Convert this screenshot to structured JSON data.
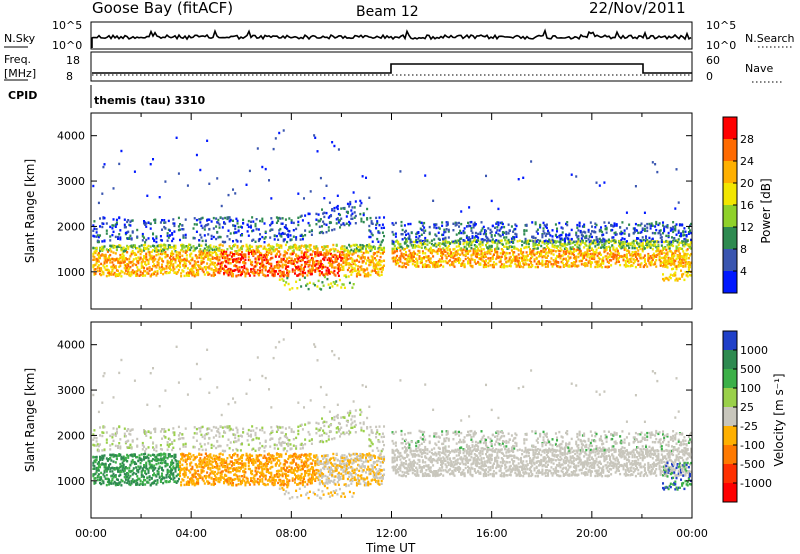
{
  "header": {
    "site": "Goose Bay (fitACF)",
    "beam": "Beam 12",
    "date": "22/Nov/2011"
  },
  "status_panels": {
    "nsky_label": "N.Sky",
    "nsky_ticks": [
      "10^5",
      "10^0"
    ],
    "nsearch_label": "N.Search",
    "nsearch_ticks": [
      "10^5",
      "10^0"
    ],
    "freq_label_line1": "Freq.",
    "freq_label_line2": "[MHz]",
    "freq_ticks": [
      "18",
      "8"
    ],
    "nave_label": "Nave",
    "nave_ticks": [
      "60",
      "0"
    ],
    "cpid_label": "CPID",
    "cpid_text": "themis (tau) 3310"
  },
  "chart_data": [
    {
      "type": "heatmap",
      "ylabel": "Slant Range [km]",
      "y_ticks": [
        "1000",
        "2000",
        "3000",
        "4000"
      ],
      "ylim": [
        180,
        4500
      ],
      "xlim": [
        0,
        24
      ],
      "colorbar_label": "Power [dB]",
      "colorbar_ticks": [
        "28",
        "24",
        "20",
        "16",
        "12",
        "8",
        "4"
      ],
      "colorbar_colors": [
        "#ff0000",
        "#ff6a00",
        "#ffb000",
        "#f2e600",
        "#8fd12a",
        "#2e8a50",
        "#3a56b0",
        "#0018ff"
      ]
    },
    {
      "type": "heatmap",
      "ylabel": "Slant Range [km]",
      "y_ticks": [
        "1000",
        "2000",
        "3000",
        "4000"
      ],
      "ylim": [
        180,
        4500
      ],
      "xlim": [
        0,
        24
      ],
      "colorbar_label": "Velocity [m s⁻¹]",
      "colorbar_ticks": [
        "1000",
        "500",
        "100",
        "25",
        "-25",
        "-100",
        "-500",
        "-1000"
      ],
      "colorbar_colors": [
        "#2040c8",
        "#2e8a50",
        "#3cb048",
        "#9ad04a",
        "#c8c6bc",
        "#ffb000",
        "#ff7a00",
        "#ff3000",
        "#ff0000"
      ]
    }
  ],
  "x_axis": {
    "ticks": [
      "00:00",
      "04:00",
      "08:00",
      "12:00",
      "16:00",
      "20:00",
      "00:00"
    ],
    "label": "Time UT"
  }
}
